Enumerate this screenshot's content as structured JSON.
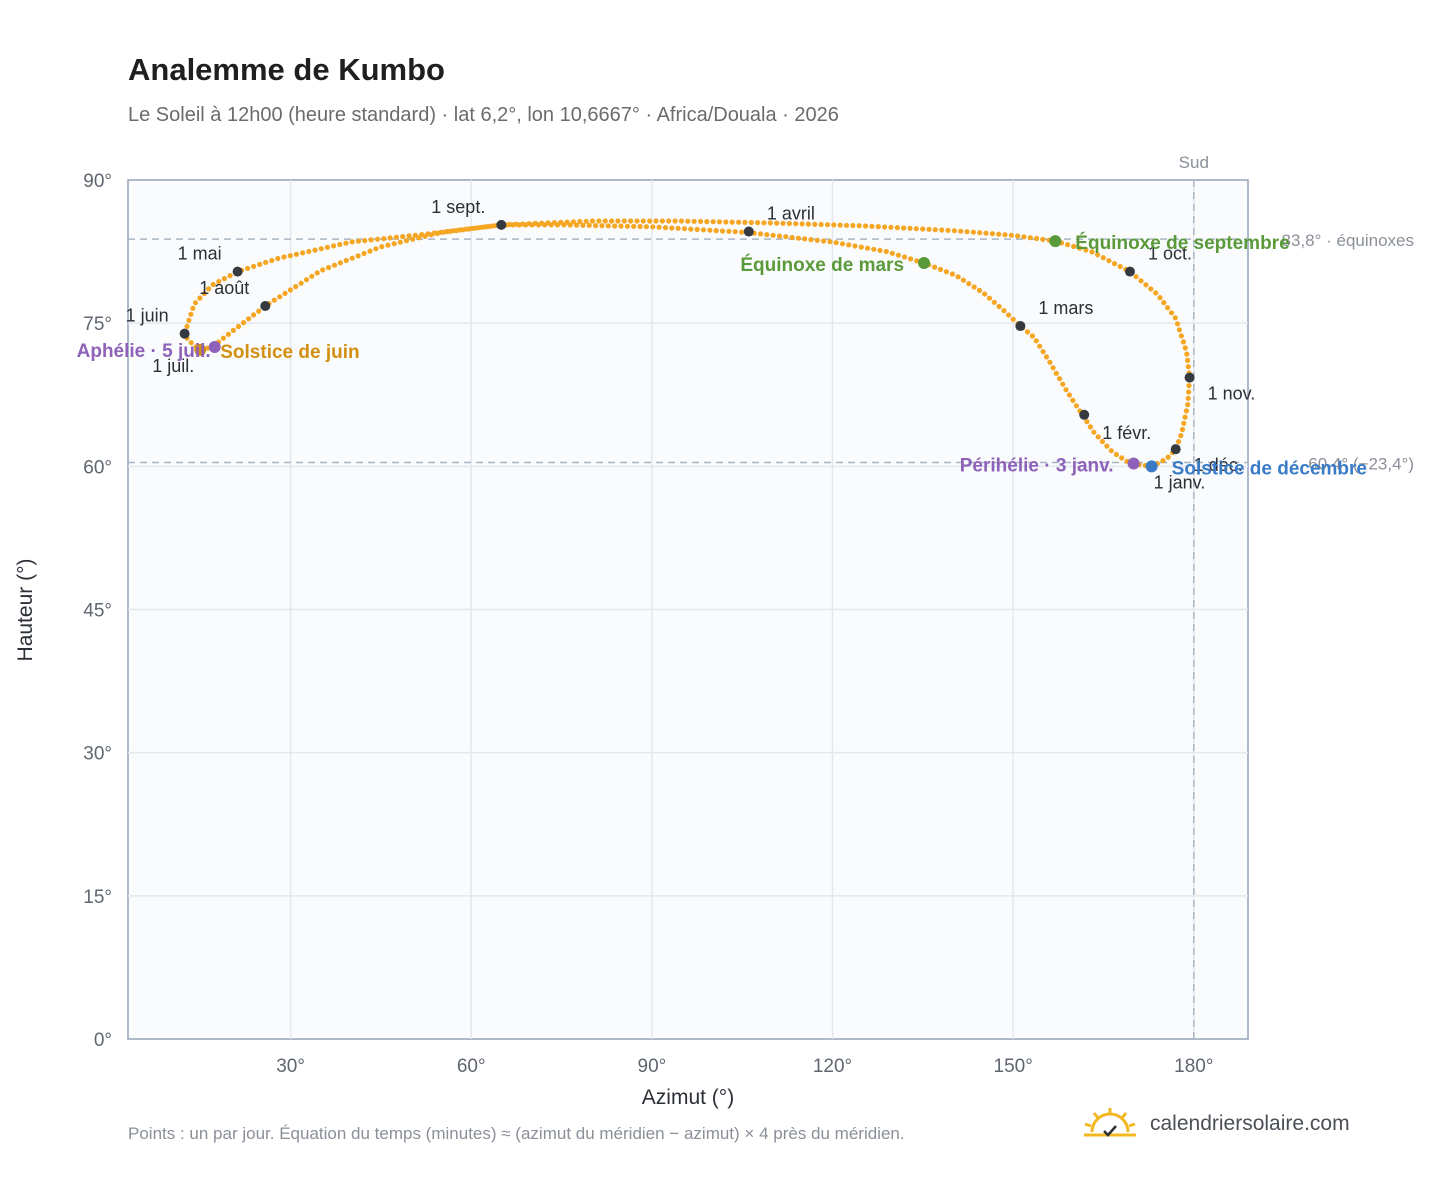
{
  "header": {
    "title": "Analemme de Kumbo",
    "subtitle": "Le Soleil à 12h00 (heure standard) · lat 6,2°, lon 10,6667° · Africa/Douala · 2026"
  },
  "footer": {
    "note": "Points : un par jour. Équation du temps (minutes) ≈ (azimut du méridien − azimut) × 4 près du méridien.",
    "brand": "calendriersolaire.com",
    "brand_icon": "sun-logo-icon"
  },
  "colors": {
    "curve": "#f5a623",
    "month_marker": "#343a40",
    "equinox": "#5a9a3a",
    "june_solstice": "#d38f12",
    "december_solstice": "#3a7bc8",
    "apsis": "#8e62b8",
    "plot_bg": "#f9fbfd",
    "grid": "#e3e8ee",
    "axis": "#94a3b8"
  },
  "chart_data": {
    "type": "scatter",
    "title": "Analemme de Kumbo",
    "xlabel": "Azimut (°)",
    "ylabel": "Hauteur (°)",
    "xlim": [
      3,
      189
    ],
    "ylim": [
      0,
      90
    ],
    "x_ticks": [
      30,
      60,
      90,
      120,
      150,
      180
    ],
    "x_tick_labels": [
      "30°",
      "60°",
      "90°",
      "120°",
      "150°",
      "180°"
    ],
    "y_ticks": [
      0,
      15,
      30,
      45,
      60,
      75,
      90
    ],
    "y_tick_labels": [
      "0°",
      "15°",
      "30°",
      "45°",
      "60°",
      "75°",
      "90°"
    ],
    "grid": true,
    "meridian": {
      "x": 180,
      "label": "Sud"
    },
    "reference_lines": [
      {
        "y": 83.8,
        "label": "83,8° · équinoxes"
      },
      {
        "y": 60.4,
        "label": "60,4° (−23,4°)"
      }
    ],
    "curve_points": [
      [
        173.0,
        60.0
      ],
      [
        169.5,
        60.3
      ],
      [
        166.5,
        61.5
      ],
      [
        163.5,
        63.5
      ],
      [
        161.5,
        65.4
      ],
      [
        159.0,
        67.8
      ],
      [
        156.0,
        71.0
      ],
      [
        153.5,
        73.5
      ],
      [
        151.2,
        74.7
      ],
      [
        148.5,
        76.3
      ],
      [
        145.0,
        78.2
      ],
      [
        140.5,
        80.0
      ],
      [
        135.2,
        81.3
      ],
      [
        129.0,
        82.5
      ],
      [
        120.0,
        83.5
      ],
      [
        106.0,
        84.5
      ],
      [
        90.0,
        85.1
      ],
      [
        75.0,
        85.3
      ],
      [
        65.0,
        85.3
      ],
      [
        55.0,
        84.5
      ],
      [
        45.0,
        83.0
      ],
      [
        35.0,
        80.5
      ],
      [
        25.8,
        76.8
      ],
      [
        20.0,
        74.0
      ],
      [
        17.0,
        72.5
      ],
      [
        15.0,
        72.2
      ],
      [
        13.0,
        73.2
      ],
      [
        12.4,
        73.9
      ],
      [
        14.0,
        77.0
      ],
      [
        17.0,
        79.0
      ],
      [
        21.2,
        80.4
      ],
      [
        28.0,
        81.8
      ],
      [
        40.0,
        83.5
      ],
      [
        52.0,
        84.3
      ],
      [
        65.0,
        85.3
      ],
      [
        80.0,
        85.7
      ],
      [
        95.0,
        85.7
      ],
      [
        110.0,
        85.5
      ],
      [
        125.0,
        85.2
      ],
      [
        140.0,
        84.7
      ],
      [
        150.0,
        84.2
      ],
      [
        157.0,
        83.6
      ],
      [
        163.0,
        82.5
      ],
      [
        169.4,
        80.4
      ],
      [
        174.0,
        78.0
      ],
      [
        177.0,
        75.5
      ],
      [
        178.8,
        72.0
      ],
      [
        179.3,
        69.3
      ],
      [
        179.0,
        66.5
      ],
      [
        178.0,
        63.5
      ],
      [
        177.0,
        61.8
      ],
      [
        175.5,
        60.8
      ],
      [
        173.0,
        60.0
      ]
    ],
    "month_markers": [
      {
        "label": "1 janv.",
        "x": 173.0,
        "y": 60.0
      },
      {
        "label": "1 févr.",
        "x": 161.8,
        "y": 65.4
      },
      {
        "label": "1 mars",
        "x": 151.2,
        "y": 74.7
      },
      {
        "label": "1 avril",
        "x": 106.1,
        "y": 84.6
      },
      {
        "label": "1 mai",
        "x": 21.2,
        "y": 80.4
      },
      {
        "label": "1 juin",
        "x": 12.4,
        "y": 73.9
      },
      {
        "label": "1 juil.",
        "x": 15.0,
        "y": 72.2
      },
      {
        "label": "1 août",
        "x": 25.8,
        "y": 76.8
      },
      {
        "label": "1 sept.",
        "x": 65.0,
        "y": 85.3
      },
      {
        "label": "1 oct.",
        "x": 169.4,
        "y": 80.4
      },
      {
        "label": "1 nov.",
        "x": 179.3,
        "y": 69.3
      },
      {
        "label": "1 déc.",
        "x": 177.0,
        "y": 61.8
      }
    ],
    "events": [
      {
        "label": "Équinoxe de mars",
        "x": 135.2,
        "y": 81.3,
        "color": "#5a9a3a"
      },
      {
        "label": "Équinoxe de septembre",
        "x": 157.0,
        "y": 83.6,
        "color": "#5a9a3a"
      },
      {
        "label": "Solstice de juin",
        "x": 15.0,
        "y": 72.2,
        "color": "#d38f12"
      },
      {
        "label": "Solstice de décembre",
        "x": 173.0,
        "y": 60.0,
        "color": "#3a7bc8"
      },
      {
        "label": "Aphélie · 5 juil.",
        "x": 17.4,
        "y": 72.5,
        "color": "#8e62b8"
      },
      {
        "label": "Périhélie · 3 janv.",
        "x": 170.0,
        "y": 60.3,
        "color": "#8e62b8"
      }
    ]
  }
}
